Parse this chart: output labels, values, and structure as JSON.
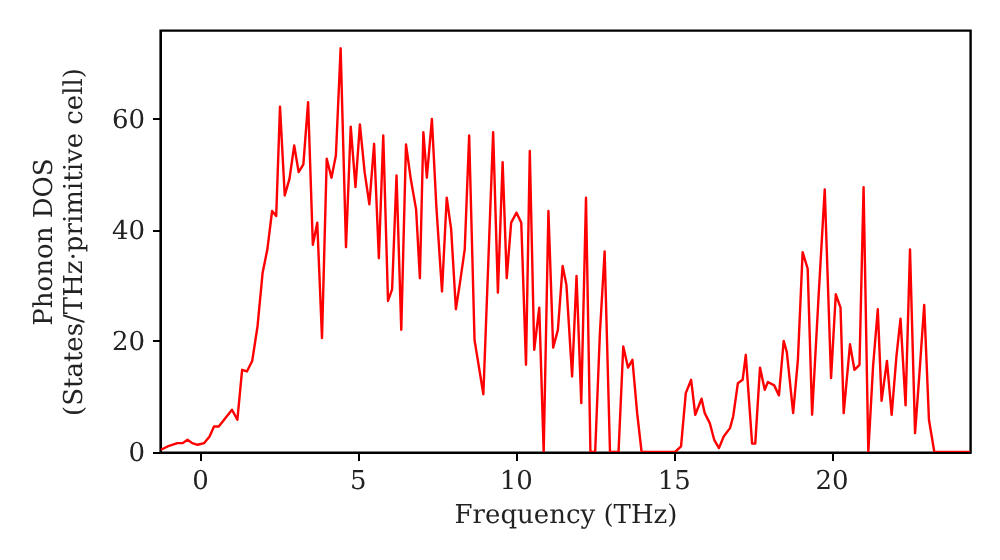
{
  "chart_data": {
    "type": "line",
    "xlabel": "Frequency (THz)",
    "ylabel": "Phonon DOS\n(States/THz·primitive cell)",
    "xlim": [
      -1.25,
      24.4
    ],
    "ylim": [
      0,
      76
    ],
    "xticks": [
      0,
      5,
      10,
      15,
      20
    ],
    "yticks": [
      0,
      20,
      40,
      60
    ],
    "grid": false,
    "x": [
      -1.22,
      -1.01,
      -0.7,
      -0.53,
      -0.38,
      -0.23,
      -0.06,
      0.15,
      0.32,
      0.46,
      0.61,
      0.78,
      1.03,
      1.2,
      1.35,
      1.5,
      1.67,
      1.84,
      2.0,
      2.15,
      2.3,
      2.43,
      2.55,
      2.7,
      2.85,
      3.0,
      3.14,
      3.29,
      3.44,
      3.59,
      3.73,
      3.88,
      4.03,
      4.18,
      4.32,
      4.47,
      4.64,
      4.79,
      4.94,
      5.08,
      5.23,
      5.38,
      5.53,
      5.68,
      5.82,
      5.97,
      6.1,
      6.24,
      6.39,
      6.54,
      6.69,
      6.86,
      6.98,
      7.09,
      7.2,
      7.36,
      7.5,
      7.68,
      7.83,
      7.97,
      8.12,
      8.25,
      8.4,
      8.54,
      8.71,
      8.99,
      9.3,
      9.45,
      9.6,
      9.73,
      9.87,
      10.04,
      10.19,
      10.34,
      10.46,
      10.6,
      10.76,
      10.9,
      11.05,
      11.2,
      11.35,
      11.5,
      11.62,
      11.8,
      11.94,
      12.09,
      12.24,
      12.38,
      12.53,
      12.68,
      12.83,
      13.0,
      13.27,
      13.42,
      13.57,
      13.71,
      13.86,
      14.0,
      15.06,
      15.25,
      15.4,
      15.57,
      15.7,
      15.9,
      16.0,
      16.16,
      16.3,
      16.45,
      16.6,
      16.8,
      16.9,
      17.05,
      17.2,
      17.3,
      17.5,
      17.6,
      17.75,
      17.9,
      18.0,
      18.2,
      18.35,
      18.5,
      18.6,
      18.8,
      18.95,
      19.1,
      19.26,
      19.4,
      19.6,
      19.8,
      20.0,
      20.15,
      20.3,
      20.4,
      20.6,
      20.74,
      20.9,
      21.03,
      21.18,
      21.33,
      21.48,
      21.6,
      21.77,
      21.92,
      22.07,
      22.2,
      22.36,
      22.5,
      22.66,
      22.8,
      22.95,
      23.1,
      23.27,
      24.4
    ],
    "series": [
      {
        "color": "#ff0000",
        "values": [
          0.4,
          1,
          1.6,
          1.6,
          2.2,
          1.6,
          1.3,
          1.6,
          2.8,
          4.6,
          4.6,
          5.8,
          7.6,
          5.8,
          14.8,
          14.5,
          16.4,
          22.7,
          32.3,
          36.5,
          43.4,
          42.5,
          62.2,
          46.2,
          49.2,
          55.2,
          50.4,
          51.8,
          63,
          37.3,
          41.3,
          20.5,
          52.8,
          49.4,
          53.4,
          72.7,
          36.9,
          58.6,
          47.7,
          59,
          50.4,
          44.6,
          55.5,
          34.9,
          57,
          27.2,
          29.3,
          49.8,
          22,
          55.4,
          49.2,
          43.7,
          31.3,
          57.6,
          49.4,
          60,
          44.3,
          28.9,
          45.8,
          40.1,
          25.7,
          30.5,
          36.5,
          57,
          20.2,
          10.4,
          57.6,
          28.7,
          52.2,
          31.3,
          41.3,
          43.1,
          41.3,
          15.7,
          54.2,
          18.4,
          26,
          0,
          43.4,
          18.8,
          22,
          33.5,
          30.1,
          13.6,
          31.7,
          8.8,
          45.8,
          0,
          0,
          21.4,
          36.1,
          0,
          0,
          19,
          15.2,
          16.6,
          7,
          0,
          0,
          1,
          10.6,
          13,
          6.7,
          9.6,
          7,
          5.2,
          2.2,
          0.7,
          2.8,
          4.3,
          6.4,
          12.4,
          13,
          17.5,
          1.5,
          1.5,
          15.2,
          11.2,
          12.6,
          12,
          10.2,
          20,
          18,
          7,
          16.6,
          36,
          33,
          6.7,
          27.5,
          47.3,
          13.3,
          28.4,
          26,
          7,
          19.4,
          14.8,
          15.7,
          47.7,
          0,
          15.4,
          25.7,
          9.2,
          16.4,
          6.7,
          17.2,
          24,
          8.4,
          36.5,
          3.4,
          14.2,
          26.5,
          5.8,
          0,
          0
        ]
      }
    ]
  }
}
